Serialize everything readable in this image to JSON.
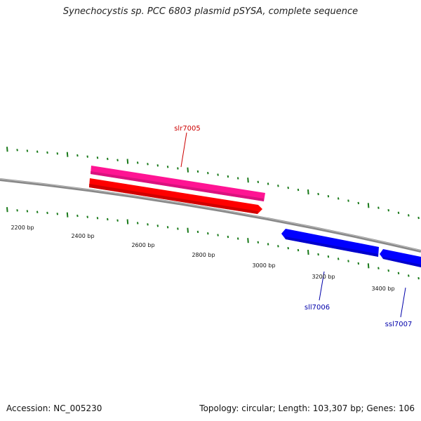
{
  "title": "Synechocystis sp. PCC 6803 plasmid pSYSA, complete sequence",
  "footer": {
    "accession": "Accession: NC_005230",
    "summary": "Topology: circular; Length: 103,307 bp; Genes: 106"
  },
  "colors": {
    "backbone": "#888888",
    "tick": "#1a7a1a",
    "forward_cds": "#ff1493",
    "forward_gene": "#ff0000",
    "reverse": "#0000ff",
    "forward_label": "#cc0000",
    "reverse_label": "#0000aa"
  },
  "position_labels": [
    "2200 bp",
    "2400 bp",
    "2600 bp",
    "2800 bp",
    "3000 bp",
    "3200 bp",
    "3400 bp"
  ],
  "genes": [
    {
      "id": "slr7005",
      "label": "slr7005",
      "strand": "forward"
    },
    {
      "id": "sll7006",
      "label": "sll7006",
      "strand": "reverse"
    },
    {
      "id": "ssl7007",
      "label": "ssl7007",
      "strand": "reverse"
    }
  ]
}
